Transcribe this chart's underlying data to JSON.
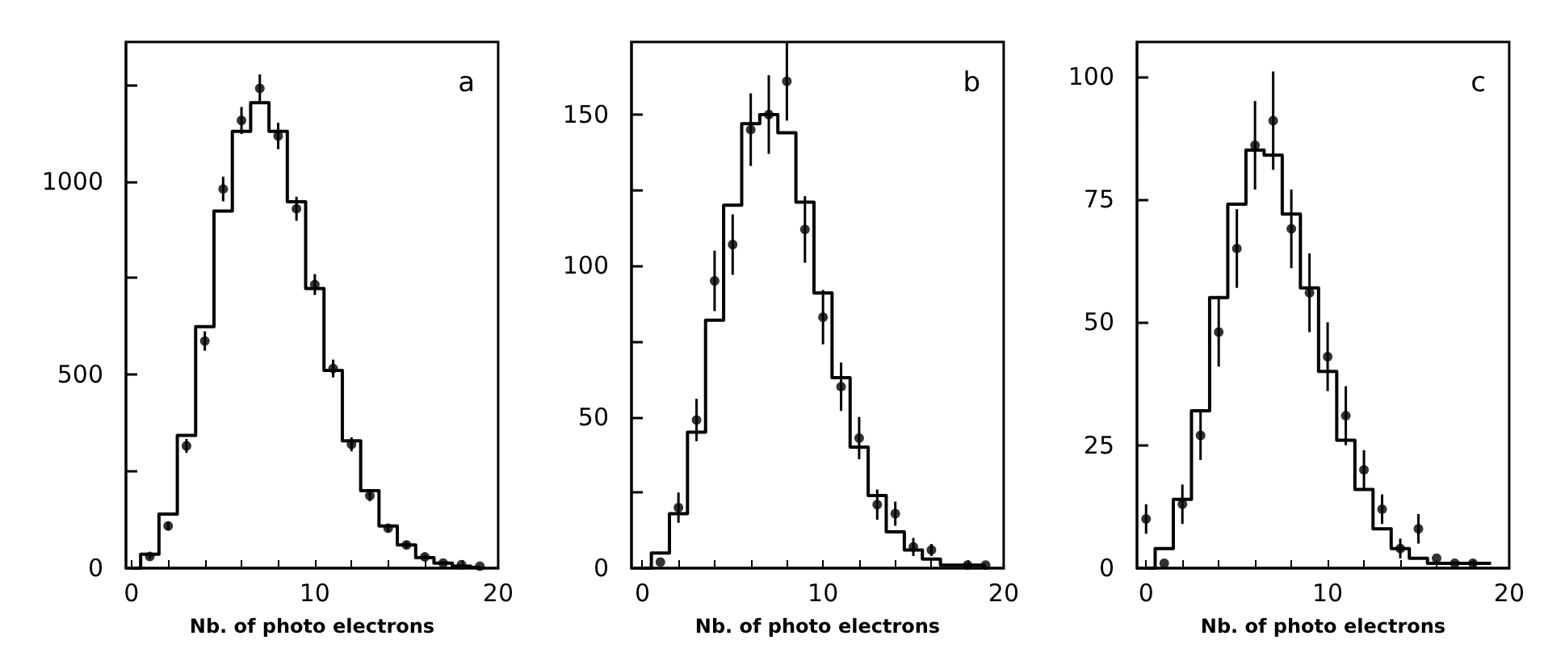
{
  "chart_data": [
    {
      "type": "step",
      "title": "a",
      "xlabel": "Nb. of photo electrons",
      "x": [
        0,
        1,
        2,
        3,
        4,
        5,
        6,
        7,
        8,
        9,
        10,
        11,
        12,
        13,
        14,
        15,
        16,
        17,
        18,
        19
      ],
      "xlim": [
        -0.3,
        20
      ],
      "xticks": [
        0,
        {
          "value": 2,
          "label": null
        },
        {
          "value": 4,
          "label": null
        },
        {
          "value": 6,
          "label": null
        },
        {
          "value": 8,
          "label": null
        },
        10,
        {
          "value": 12,
          "label": null
        },
        {
          "value": 14,
          "label": null
        },
        {
          "value": 16,
          "label": null
        },
        {
          "value": 18,
          "label": null
        },
        20
      ],
      "ylim": [
        0,
        1360
      ],
      "yticks": [
        0,
        {
          "value": 250,
          "label": null
        },
        500,
        {
          "value": 750,
          "label": null
        },
        1000,
        {
          "value": 1250,
          "label": null
        }
      ],
      "grid": false,
      "line_style": "solid",
      "series": [
        {
          "type": "step",
          "color": "#000000",
          "marker": "none",
          "values": [
            0,
            36,
            140,
            343,
            624,
            923,
            1129,
            1203,
            1129,
            947,
            723,
            511,
            329,
            200,
            109,
            60,
            27,
            13,
            5,
            2
          ]
        },
        {
          "type": "scatter",
          "color": "#000000",
          "marker": "circle",
          "values": [
            null,
            30,
            109,
            316,
            587,
            980,
            1157,
            1240,
            1117,
            929,
            733,
            516,
            320,
            187,
            103,
            60,
            29,
            13,
            9,
            5
          ],
          "errors": [
            null,
            6,
            11,
            18,
            25,
            32,
            35,
            36,
            34,
            31,
            27,
            23,
            18,
            14,
            10,
            8,
            6,
            null,
            null,
            null
          ]
        }
      ]
    },
    {
      "type": "step",
      "title": "b",
      "xlabel": "Nb. of photo electrons",
      "x": [
        0,
        1,
        2,
        3,
        4,
        5,
        6,
        7,
        8,
        9,
        10,
        11,
        12,
        13,
        14,
        15,
        16,
        17,
        18,
        19
      ],
      "xlim": [
        -0.6,
        20
      ],
      "xticks": [
        0,
        {
          "value": 2,
          "label": null
        },
        {
          "value": 4,
          "label": null
        },
        {
          "value": 6,
          "label": null
        },
        {
          "value": 8,
          "label": null
        },
        10,
        {
          "value": 12,
          "label": null
        },
        {
          "value": 14,
          "label": null
        },
        {
          "value": 16,
          "label": null
        },
        {
          "value": 18,
          "label": null
        },
        20
      ],
      "ylim": [
        0,
        174
      ],
      "yticks": [
        0,
        {
          "value": 25,
          "label": null
        },
        50,
        {
          "value": 75,
          "label": null
        },
        100,
        {
          "value": 125,
          "label": null
        },
        150
      ],
      "grid": false,
      "line_style": "solid",
      "series": [
        {
          "type": "step",
          "color": "#000000",
          "marker": "none",
          "values": [
            0,
            5,
            18,
            45,
            82,
            120,
            147,
            150,
            144,
            121,
            91,
            63,
            40,
            24,
            12,
            6,
            3,
            1,
            1,
            1
          ]
        },
        {
          "type": "scatter",
          "color": "#000000",
          "marker": "circle",
          "values": [
            null,
            2,
            20,
            49,
            95,
            107,
            145,
            150,
            161,
            112,
            83,
            60,
            43,
            21,
            18,
            7,
            6,
            null,
            1,
            1
          ],
          "errors": [
            null,
            null,
            5,
            7,
            10,
            10,
            12,
            13,
            13,
            11,
            9,
            8,
            7,
            5,
            4,
            3,
            2,
            null,
            null,
            null
          ]
        }
      ]
    },
    {
      "type": "step",
      "title": "c",
      "xlabel": "Nb. of photo electrons",
      "x": [
        0,
        1,
        2,
        3,
        4,
        5,
        6,
        7,
        8,
        9,
        10,
        11,
        12,
        13,
        14,
        15,
        16,
        17,
        18,
        19
      ],
      "xlim": [
        -0.5,
        20
      ],
      "xticks": [
        0,
        {
          "value": 2,
          "label": null
        },
        {
          "value": 4,
          "label": null
        },
        {
          "value": 6,
          "label": null
        },
        {
          "value": 8,
          "label": null
        },
        10,
        {
          "value": 12,
          "label": null
        },
        {
          "value": 14,
          "label": null
        },
        {
          "value": 16,
          "label": null
        },
        {
          "value": 18,
          "label": null
        },
        20
      ],
      "ylim": [
        0,
        107
      ],
      "yticks": [
        0,
        25,
        50,
        75,
        100
      ],
      "grid": false,
      "line_style": "solid",
      "series": [
        {
          "type": "step",
          "color": "#000000",
          "marker": "none",
          "values": [
            0,
            4,
            14,
            32,
            55,
            74,
            85,
            84,
            72,
            57,
            40,
            26,
            16,
            8,
            4,
            2,
            1,
            1,
            1,
            1
          ]
        },
        {
          "type": "scatter",
          "color": "#000000",
          "marker": "circle",
          "values": [
            10,
            1,
            13,
            27,
            48,
            65,
            86,
            91,
            69,
            56,
            43,
            31,
            20,
            12,
            4,
            8,
            2,
            1,
            1,
            null
          ],
          "errors": [
            3,
            null,
            4,
            5,
            7,
            8,
            9,
            10,
            8,
            8,
            7,
            6,
            4,
            3,
            2,
            3,
            null,
            null,
            null,
            null
          ]
        }
      ]
    }
  ]
}
